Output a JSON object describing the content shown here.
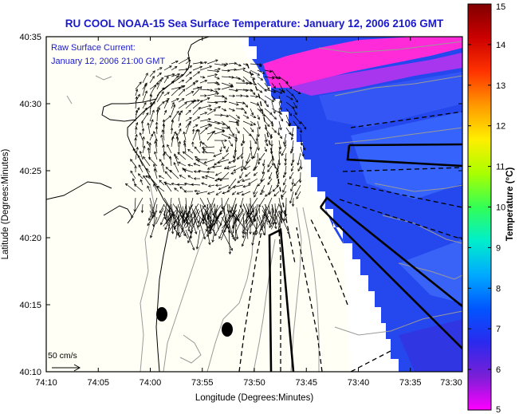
{
  "title": "RU COOL  NOAA-15  Sea Surface Temperature:  January 12, 2006 2106 GMT",
  "annotation": {
    "line1": "Raw Surface Current:",
    "line2": "January 12, 2006 21:00 GMT"
  },
  "x_axis": {
    "label": "Longitude (Degrees:Minutes)",
    "ticks": [
      "74:10",
      "74:05",
      "74:00",
      "73:55",
      "73:50",
      "73:45",
      "73:40",
      "73:35",
      "73:30"
    ]
  },
  "y_axis": {
    "label": "Latitude (Degrees:Minutes)",
    "ticks": [
      "40:35",
      "40:30",
      "40:25",
      "40:20",
      "40:15",
      "40:10"
    ]
  },
  "scale_label": "50 cm/s",
  "colorbar": {
    "label": "Temperature (°C)",
    "min": 5,
    "max": 15,
    "ticks": [
      "15",
      "14",
      "13",
      "12",
      "11",
      "10",
      "9",
      "8",
      "7",
      "6",
      "5"
    ],
    "colors": [
      "#ff00ff",
      "#7a1fd6",
      "#2a2aee",
      "#0055ff",
      "#00aaff",
      "#00eecc",
      "#33ff55",
      "#aaff00",
      "#ffee00",
      "#ff9900",
      "#ff3300",
      "#cc0000",
      "#800000"
    ]
  },
  "map_colors": {
    "land": "#fffff5",
    "water_unknown": "#ffffff",
    "sst_main": "#1e3cf0",
    "sst_warm": "#ff2ad8",
    "contour": "#9a9a9a",
    "coast": "#000000",
    "vector": "#000000"
  }
}
